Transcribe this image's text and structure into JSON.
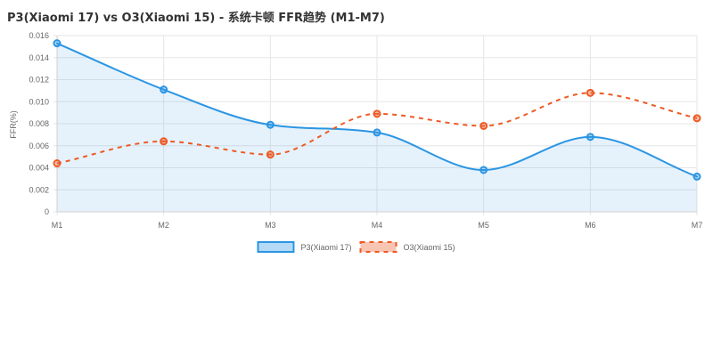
{
  "chart_data": {
    "type": "line",
    "title": "P3(Xiaomi 17) vs O3(Xiaomi 15) - 系统卡顿 FFR趋势 (M1-M7)",
    "xlabel": "",
    "ylabel": "FFR(%)",
    "categories": [
      "M1",
      "M2",
      "M3",
      "M4",
      "M5",
      "M6",
      "M7"
    ],
    "ylim": [
      0,
      0.016
    ],
    "yticks": [
      "0",
      "0.002",
      "0.004",
      "0.006",
      "0.008",
      "0.010",
      "0.012",
      "0.014",
      "0.016"
    ],
    "grid": true,
    "legend_position": "bottom",
    "series": [
      {
        "name": "P3(Xiaomi 17)",
        "values": [
          0.0153,
          0.0111,
          0.0079,
          0.0072,
          0.0038,
          0.0068,
          0.0032
        ],
        "color": "#2b95e3",
        "fill": "rgba(43,149,227,0.12)",
        "line_style": "solid",
        "filled": true
      },
      {
        "name": "O3(Xiaomi 15)",
        "values": [
          0.0044,
          0.0064,
          0.0052,
          0.0089,
          0.0078,
          0.0108,
          0.0085
        ],
        "color": "#ee5a24",
        "fill": "rgba(238,90,36,0.12)",
        "line_style": "dashed",
        "filled": false
      }
    ]
  }
}
